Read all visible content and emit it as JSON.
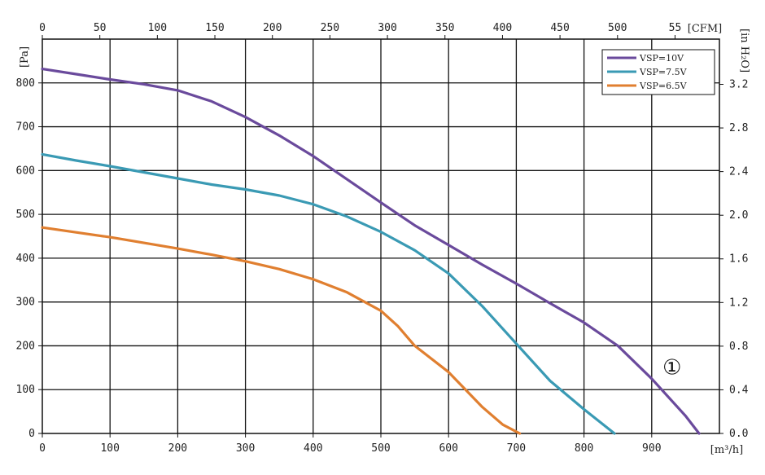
{
  "chart_data": {
    "type": "line",
    "title": "",
    "xlabel": "[m³/h]",
    "ylabel": "[Pa]",
    "x2label": "[CFM]",
    "y2label": "[in H₂O]",
    "xlim": [
      0,
      1000
    ],
    "ylim": [
      0,
      900
    ],
    "x_ticks": [
      0,
      100,
      200,
      300,
      400,
      500,
      600,
      700,
      800,
      900
    ],
    "y_ticks": [
      0,
      100,
      200,
      300,
      400,
      500,
      600,
      700,
      800
    ],
    "x2_ticks": [
      "0",
      "50",
      "100",
      "150",
      "200",
      "250",
      "300",
      "350",
      "400",
      "450",
      "500",
      "55"
    ],
    "y2_ticks": [
      "0.0",
      "0.4",
      "0.8",
      "1.2",
      "1.6",
      "2.0",
      "2.4",
      "2.8",
      "3.2"
    ],
    "grid": true,
    "legend_position": "top-right",
    "annotation": "①",
    "series": [
      {
        "name": "VSP=10V",
        "color": "#6a4a9c",
        "x": [
          0,
          50,
          100,
          150,
          200,
          250,
          300,
          350,
          400,
          450,
          500,
          550,
          600,
          650,
          700,
          750,
          800,
          850,
          900,
          950,
          970
        ],
        "y": [
          832,
          820,
          808,
          797,
          783,
          758,
          722,
          680,
          633,
          580,
          527,
          475,
          430,
          385,
          342,
          297,
          253,
          200,
          125,
          40,
          0
        ]
      },
      {
        "name": "VSP=7.5V",
        "color": "#3a9ab4",
        "x": [
          0,
          50,
          100,
          150,
          200,
          250,
          300,
          350,
          400,
          450,
          500,
          550,
          600,
          650,
          700,
          750,
          800,
          845
        ],
        "y": [
          637,
          623,
          610,
          596,
          582,
          568,
          557,
          543,
          523,
          495,
          460,
          418,
          365,
          290,
          205,
          120,
          55,
          0
        ]
      },
      {
        "name": "VSP=6.5V",
        "color": "#e07f30",
        "x": [
          0,
          50,
          100,
          150,
          200,
          250,
          300,
          350,
          400,
          450,
          500,
          525,
          550,
          600,
          650,
          680,
          705
        ],
        "y": [
          470,
          459,
          448,
          435,
          422,
          408,
          393,
          375,
          352,
          322,
          280,
          245,
          200,
          140,
          60,
          20,
          0
        ]
      }
    ]
  }
}
